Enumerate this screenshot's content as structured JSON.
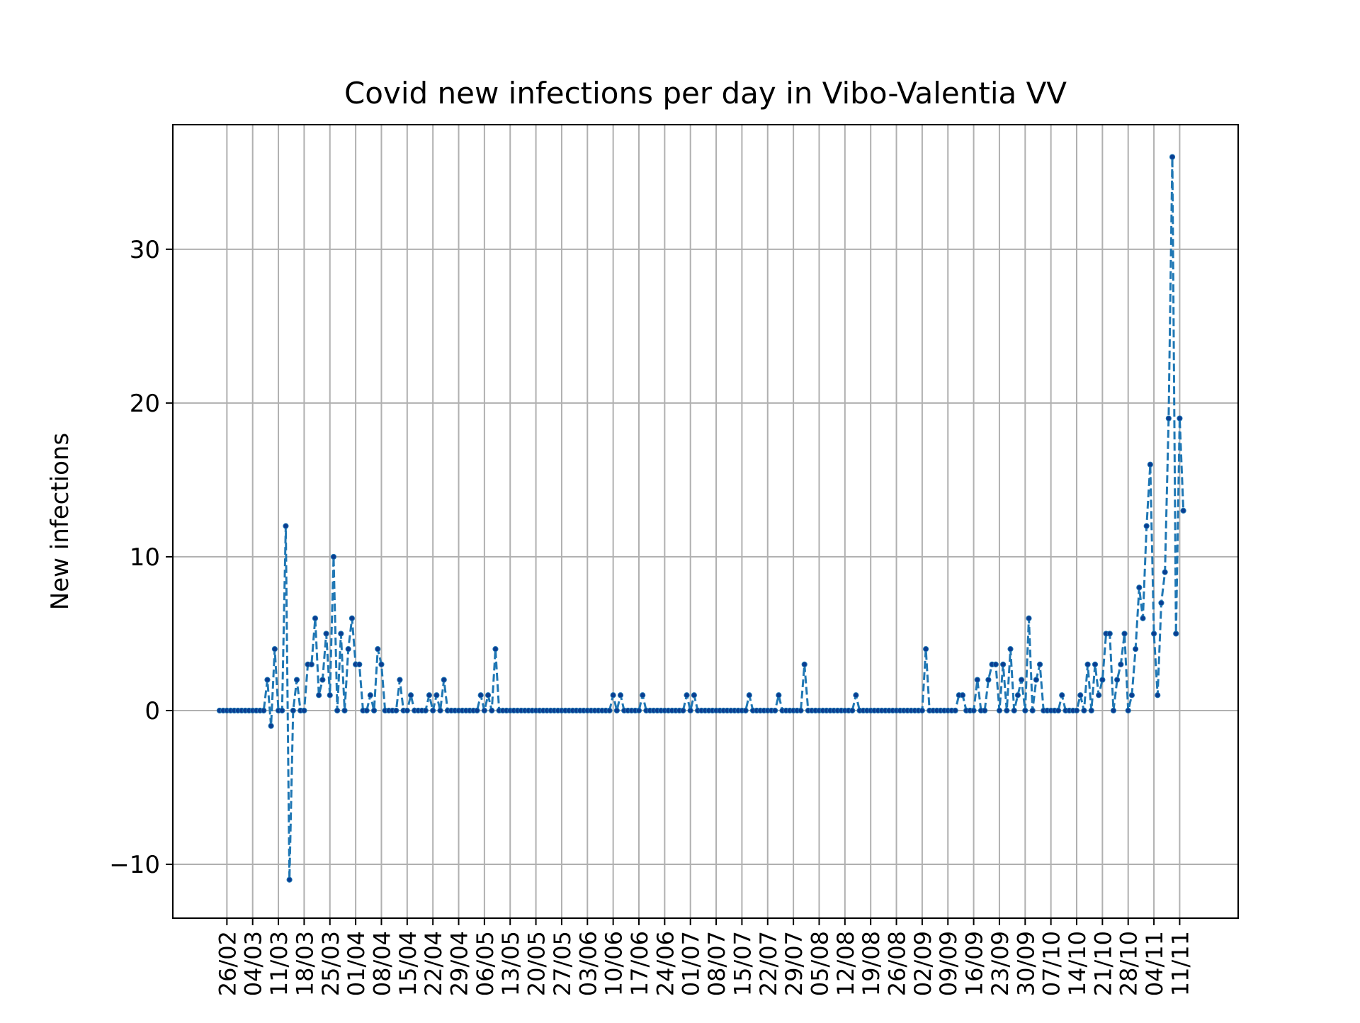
{
  "chart_data": {
    "type": "line",
    "title": "Covid new infections per day in Vibo-Valentia VV",
    "xlabel": "",
    "ylabel": "New infections",
    "ylim": [
      -13.5,
      38.1
    ],
    "yticks": [
      -10,
      0,
      10,
      20,
      30
    ],
    "ytick_labels": [
      "−10",
      "0",
      "10",
      "20",
      "30"
    ],
    "xtick_labels": [
      "26/02",
      "04/03",
      "11/03",
      "18/03",
      "25/03",
      "01/04",
      "08/04",
      "15/04",
      "22/04",
      "29/04",
      "06/05",
      "13/05",
      "20/05",
      "27/05",
      "03/06",
      "10/06",
      "17/06",
      "24/06",
      "01/07",
      "08/07",
      "15/07",
      "22/07",
      "29/07",
      "05/08",
      "12/08",
      "19/08",
      "26/08",
      "02/09",
      "09/09",
      "16/09",
      "23/09",
      "30/09",
      "07/10",
      "14/10",
      "21/10",
      "28/10",
      "04/11",
      "11/11"
    ],
    "x_start": "24/02",
    "tick_first_day": 2,
    "tick_step_days": 7,
    "grid": true,
    "line_color": "#1f77b4",
    "line_style": "dashed",
    "marker_color": "#0a3d91",
    "series": [
      {
        "values": [
          0,
          0,
          0,
          0,
          0,
          0,
          0,
          0,
          0,
          0,
          0,
          0,
          0,
          2,
          -1,
          4,
          0,
          0,
          12,
          -11,
          0,
          2,
          0,
          0,
          3,
          3,
          6,
          1,
          2,
          5,
          1,
          10,
          0,
          5,
          0,
          4,
          6,
          3,
          3,
          0,
          0,
          1,
          0,
          4,
          3,
          0,
          0,
          0,
          0,
          2,
          0,
          0,
          1,
          0,
          0,
          0,
          0,
          1,
          0,
          1,
          0,
          2,
          0,
          0,
          0,
          0,
          0,
          0,
          0,
          0,
          0,
          1,
          0,
          1,
          0,
          4,
          0,
          0,
          0,
          0,
          0,
          0,
          0,
          0,
          0,
          0,
          0,
          0,
          0,
          0,
          0,
          0,
          0,
          0,
          0,
          0,
          0,
          0,
          0,
          0,
          0,
          0,
          0,
          0,
          0,
          0,
          0,
          1,
          0,
          1,
          0,
          0,
          0,
          0,
          0,
          1,
          0,
          0,
          0,
          0,
          0,
          0,
          0,
          0,
          0,
          0,
          0,
          1,
          0,
          1,
          0,
          0,
          0,
          0,
          0,
          0,
          0,
          0,
          0,
          0,
          0,
          0,
          0,
          0,
          1,
          0,
          0,
          0,
          0,
          0,
          0,
          0,
          1,
          0,
          0,
          0,
          0,
          0,
          0,
          3,
          0,
          0,
          0,
          0,
          0,
          0,
          0,
          0,
          0,
          0,
          0,
          0,
          0,
          1,
          0,
          0,
          0,
          0,
          0,
          0,
          0,
          0,
          0,
          0,
          0,
          0,
          0,
          0,
          0,
          0,
          0,
          0,
          4,
          0,
          0,
          0,
          0,
          0,
          0,
          0,
          0,
          1,
          1,
          0,
          0,
          0,
          2,
          0,
          0,
          2,
          3,
          3,
          0,
          3,
          0,
          4,
          0,
          1,
          2,
          0,
          6,
          0,
          2,
          3,
          0,
          0,
          0,
          0,
          0,
          1,
          0,
          0,
          0,
          0,
          1,
          0,
          3,
          0,
          3,
          1,
          2,
          5,
          5,
          0,
          2,
          3,
          5,
          0,
          1,
          4,
          8,
          6,
          12,
          16,
          5,
          1,
          7,
          9,
          19,
          36,
          5,
          19,
          13
        ]
      }
    ]
  }
}
